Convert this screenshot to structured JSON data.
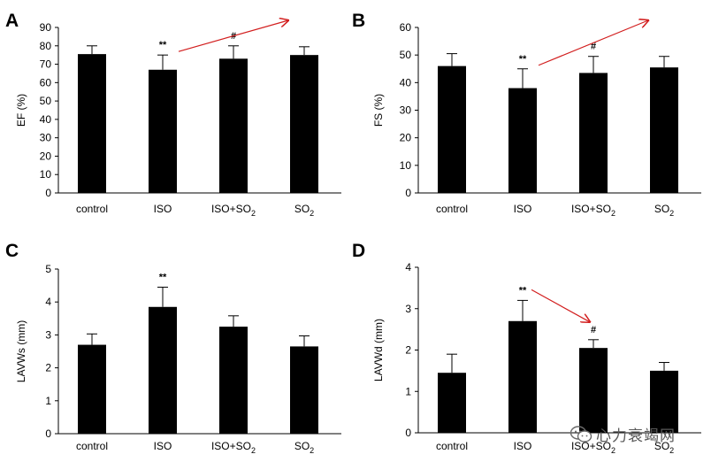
{
  "watermark": {
    "text": "心力衰竭网",
    "icon": "wechat-logo-icon"
  },
  "colors": {
    "bar": "#000000",
    "trend_arrow": "#d21e1e",
    "background": "#ffffff"
  },
  "chart_data": [
    {
      "panel": "A",
      "type": "bar",
      "categories": [
        "control",
        "ISO",
        "ISO+SO2",
        "SO2"
      ],
      "category_labels": [
        [
          "control"
        ],
        [
          "ISO"
        ],
        [
          "ISO+SO",
          "2"
        ],
        [
          "SO",
          "2"
        ]
      ],
      "values": [
        75.5,
        67,
        73,
        75
      ],
      "errors": [
        4.5,
        8,
        7,
        4.5
      ],
      "ylabel": "EF (%)",
      "ylim": [
        0,
        90
      ],
      "yticks": [
        "0",
        "10",
        "20",
        "30",
        "40",
        "50",
        "60",
        "70",
        "80",
        "90"
      ],
      "annotations": [
        "",
        "**",
        "#",
        ""
      ],
      "trend_arrow": {
        "from_category": "ISO",
        "to_category": "ISO+SO2",
        "direction": "up"
      }
    },
    {
      "panel": "B",
      "type": "bar",
      "categories": [
        "control",
        "ISO",
        "ISO+SO2",
        "SO2"
      ],
      "category_labels": [
        [
          "control"
        ],
        [
          "ISO"
        ],
        [
          "ISO+SO",
          "2"
        ],
        [
          "SO",
          "2"
        ]
      ],
      "values": [
        46,
        38,
        43.5,
        45.5
      ],
      "errors": [
        4.5,
        7,
        6,
        4
      ],
      "ylabel": "FS (%)",
      "ylim": [
        0,
        60
      ],
      "yticks": [
        "0",
        "10",
        "20",
        "30",
        "40",
        "50",
        "60"
      ],
      "annotations": [
        "",
        "**",
        "#",
        ""
      ],
      "trend_arrow": {
        "from_category": "ISO",
        "to_category": "ISO+SO2",
        "direction": "up"
      }
    },
    {
      "panel": "C",
      "type": "bar",
      "categories": [
        "control",
        "ISO",
        "ISO+SO2",
        "SO2"
      ],
      "category_labels": [
        [
          "control"
        ],
        [
          "ISO"
        ],
        [
          "ISO+SO",
          "2"
        ],
        [
          "SO",
          "2"
        ]
      ],
      "values": [
        2.7,
        3.85,
        3.25,
        2.65
      ],
      "errors": [
        0.33,
        0.6,
        0.33,
        0.32
      ],
      "ylabel": "LAVWs (mm)",
      "ylim": [
        0,
        5
      ],
      "yticks": [
        "0",
        "1",
        "2",
        "3",
        "4",
        "5"
      ],
      "annotations": [
        "",
        "**",
        "",
        ""
      ],
      "trend_arrow": null
    },
    {
      "panel": "D",
      "type": "bar",
      "categories": [
        "control",
        "ISO",
        "ISO+SO2",
        "SO2"
      ],
      "category_labels": [
        [
          "control"
        ],
        [
          "ISO"
        ],
        [
          "ISO+SO",
          "2"
        ],
        [
          "SO",
          "2"
        ]
      ],
      "values": [
        1.45,
        2.7,
        2.05,
        1.5
      ],
      "errors": [
        0.45,
        0.5,
        0.2,
        0.2
      ],
      "ylabel": "LAVWd (mm)",
      "ylim": [
        0,
        4
      ],
      "yticks": [
        "0",
        "1",
        "2",
        "3",
        "4"
      ],
      "annotations": [
        "",
        "**",
        "#",
        ""
      ],
      "trend_arrow": {
        "from_category": "ISO",
        "to_category": "ISO+SO2",
        "direction": "down"
      }
    }
  ]
}
